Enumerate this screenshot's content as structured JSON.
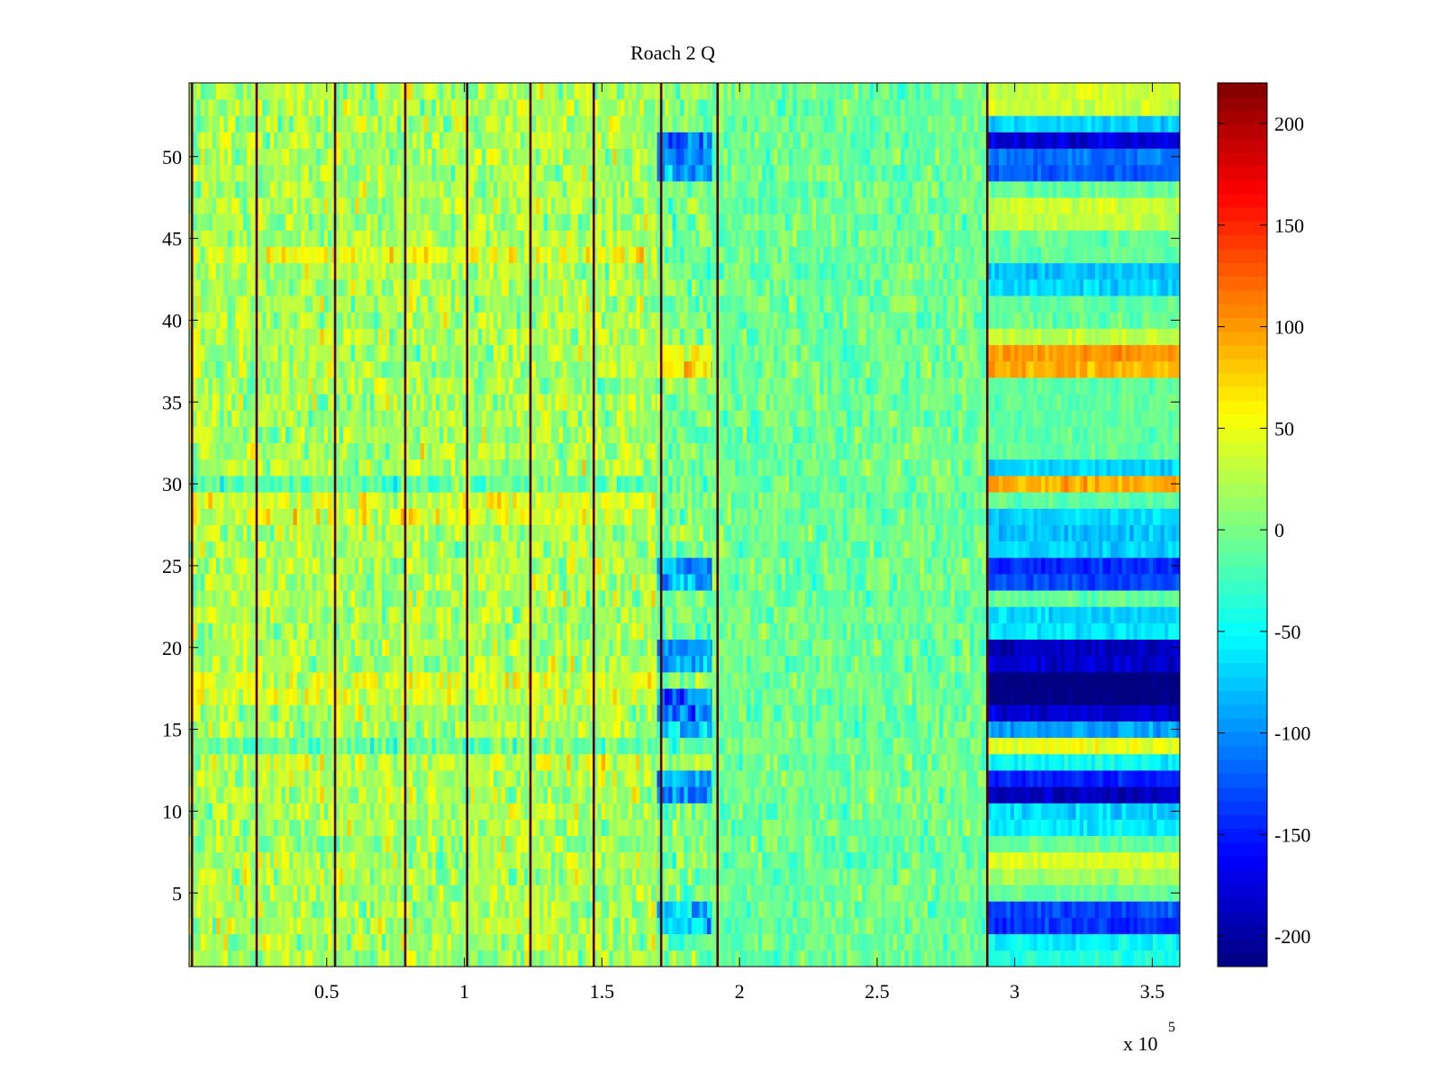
{
  "chart_data": {
    "type": "heatmap",
    "title": "Roach 2 Q",
    "xlabel": "",
    "ylabel": "",
    "x_range": [
      0,
      360000
    ],
    "y_range": [
      0.5,
      54.5
    ],
    "x_ticks": [
      50000,
      100000,
      150000,
      200000,
      250000,
      300000,
      350000
    ],
    "x_tick_labels": [
      "0.5",
      "1",
      "1.5",
      "2",
      "2.5",
      "3",
      "3.5"
    ],
    "x_multiplier_label": "x 10",
    "x_multiplier_exponent": "5",
    "y_ticks": [
      5,
      10,
      15,
      20,
      25,
      30,
      35,
      40,
      45,
      50
    ],
    "y_tick_labels": [
      "5",
      "10",
      "15",
      "20",
      "25",
      "30",
      "35",
      "40",
      "45",
      "50"
    ],
    "rows": 54,
    "colormap": "jet",
    "colorbar": {
      "range": [
        -215,
        220
      ],
      "ticks": [
        200,
        150,
        100,
        50,
        0,
        -50,
        -100,
        -150,
        -200
      ],
      "tick_labels": [
        "200",
        "150",
        "100",
        "50",
        "0",
        "-50",
        "-100",
        "-150",
        "-200"
      ]
    },
    "grid": false,
    "vertical_lines_x": [
      1000,
      24500,
      53000,
      78500,
      101000,
      124000,
      147000,
      171500,
      192000,
      290000
    ],
    "segments": [
      {
        "x_start": 0,
        "x_end": 170000,
        "base_value": 20,
        "noise": 35
      },
      {
        "x_start": 170000,
        "x_end": 190000,
        "base_value": 0,
        "noise": 35
      },
      {
        "x_start": 190000,
        "x_end": 290000,
        "base_value": -5,
        "noise": 25
      },
      {
        "x_start": 290000,
        "x_end": 360000,
        "base_value": -10,
        "noise": 15
      }
    ],
    "row_offsets": {
      "segment_1": {
        "44": 25,
        "29": 20,
        "28": 20,
        "18": 20,
        "17": 20,
        "13": 15,
        "30": -30,
        "14": -30
      },
      "segment_2": {
        "50": -110,
        "51": -120,
        "49": -80,
        "37": 70,
        "38": 60,
        "25": -90,
        "24": -80,
        "20": -100,
        "19": -90,
        "17": -120,
        "16": -110,
        "15": -80,
        "12": -90,
        "11": -100,
        "4": -80,
        "3": -70,
        "13": 30
      },
      "segment_4": {
        "54": 45,
        "53": 45,
        "52": -60,
        "51": -170,
        "50": -100,
        "49": -110,
        "47": 45,
        "46": 40,
        "43": -70,
        "42": -60,
        "39": 40,
        "38": 110,
        "37": 100,
        "31": -60,
        "30": 100,
        "28": -60,
        "27": -70,
        "26": -60,
        "25": -130,
        "24": -120,
        "22": -60,
        "21": -50,
        "20": -180,
        "19": -170,
        "18": -215,
        "17": -210,
        "16": -170,
        "15": -80,
        "14": 60,
        "13": -40,
        "12": -140,
        "11": -180,
        "10": -60,
        "9": -50,
        "7": 50,
        "6": 30,
        "4": -120,
        "3": -130,
        "2": -40,
        "1": -30
      }
    }
  }
}
